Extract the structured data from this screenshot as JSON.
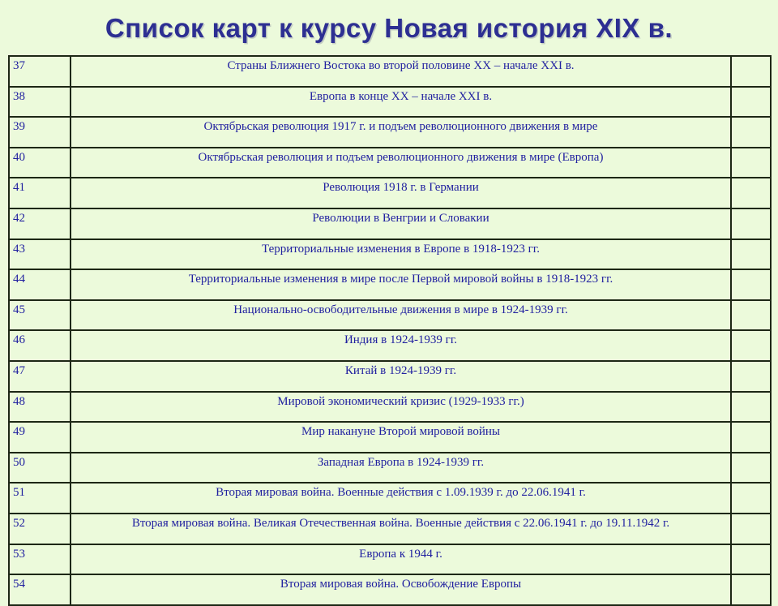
{
  "page": {
    "title": "Список карт к курсу Новая история XIX в."
  },
  "colors": {
    "background": "#ecfadb",
    "title_text": "#2d2f92",
    "cell_text": "#2121a0",
    "table_border": "#1d2715"
  },
  "table": {
    "columns": [
      "map-number",
      "map-title",
      "empty"
    ],
    "rows": [
      {
        "num": "37",
        "title": "Страны Ближнего Востока во второй половине XX – начале XXI в.",
        "extra": ""
      },
      {
        "num": "38",
        "title": "Европа в конце XX – начале XXI в.",
        "extra": ""
      },
      {
        "num": "39",
        "title": "Октябрьская революция 1917 г. и подъем революционного движения в мире",
        "extra": ""
      },
      {
        "num": "40",
        "title": "Октябрьская революция и подъем революционного движения в мире (Европа)",
        "extra": ""
      },
      {
        "num": "41",
        "title": "Революция 1918 г. в Германии",
        "extra": ""
      },
      {
        "num": "42",
        "title": "Революции в Венгрии и Словакии",
        "extra": ""
      },
      {
        "num": "43",
        "title": "Территориальные изменения в Европе в 1918-1923 гг.",
        "extra": ""
      },
      {
        "num": "44",
        "title": "Территориальные изменения в мире после Первой мировой войны  в 1918-1923 гг.",
        "extra": ""
      },
      {
        "num": "45",
        "title": "Национально-освободительные движения в мире в 1924-1939 гг.",
        "extra": ""
      },
      {
        "num": "46",
        "title": "Индия в 1924-1939 гг.",
        "extra": ""
      },
      {
        "num": "47",
        "title": "Китай в 1924-1939 гг.",
        "extra": ""
      },
      {
        "num": "48",
        "title": "Мировой экономический кризис (1929-1933 гг.)",
        "extra": ""
      },
      {
        "num": "49",
        "title": "Мир накануне Второй мировой войны",
        "extra": ""
      },
      {
        "num": "50",
        "title": "Западная Европа в 1924-1939 гг.",
        "extra": ""
      },
      {
        "num": "51",
        "title": "Вторая мировая война. Военные действия с 1.09.1939 г. до 22.06.1941 г.",
        "extra": ""
      },
      {
        "num": "52",
        "title": "Вторая мировая война. Великая Отечественная война. Военные действия с 22.06.1941 г. до 19.11.1942 г.",
        "extra": ""
      },
      {
        "num": "53",
        "title": "Европа к 1944 г.",
        "extra": ""
      },
      {
        "num": "54",
        "title": "Вторая мировая война. Освобождение Европы",
        "extra": ""
      }
    ]
  }
}
